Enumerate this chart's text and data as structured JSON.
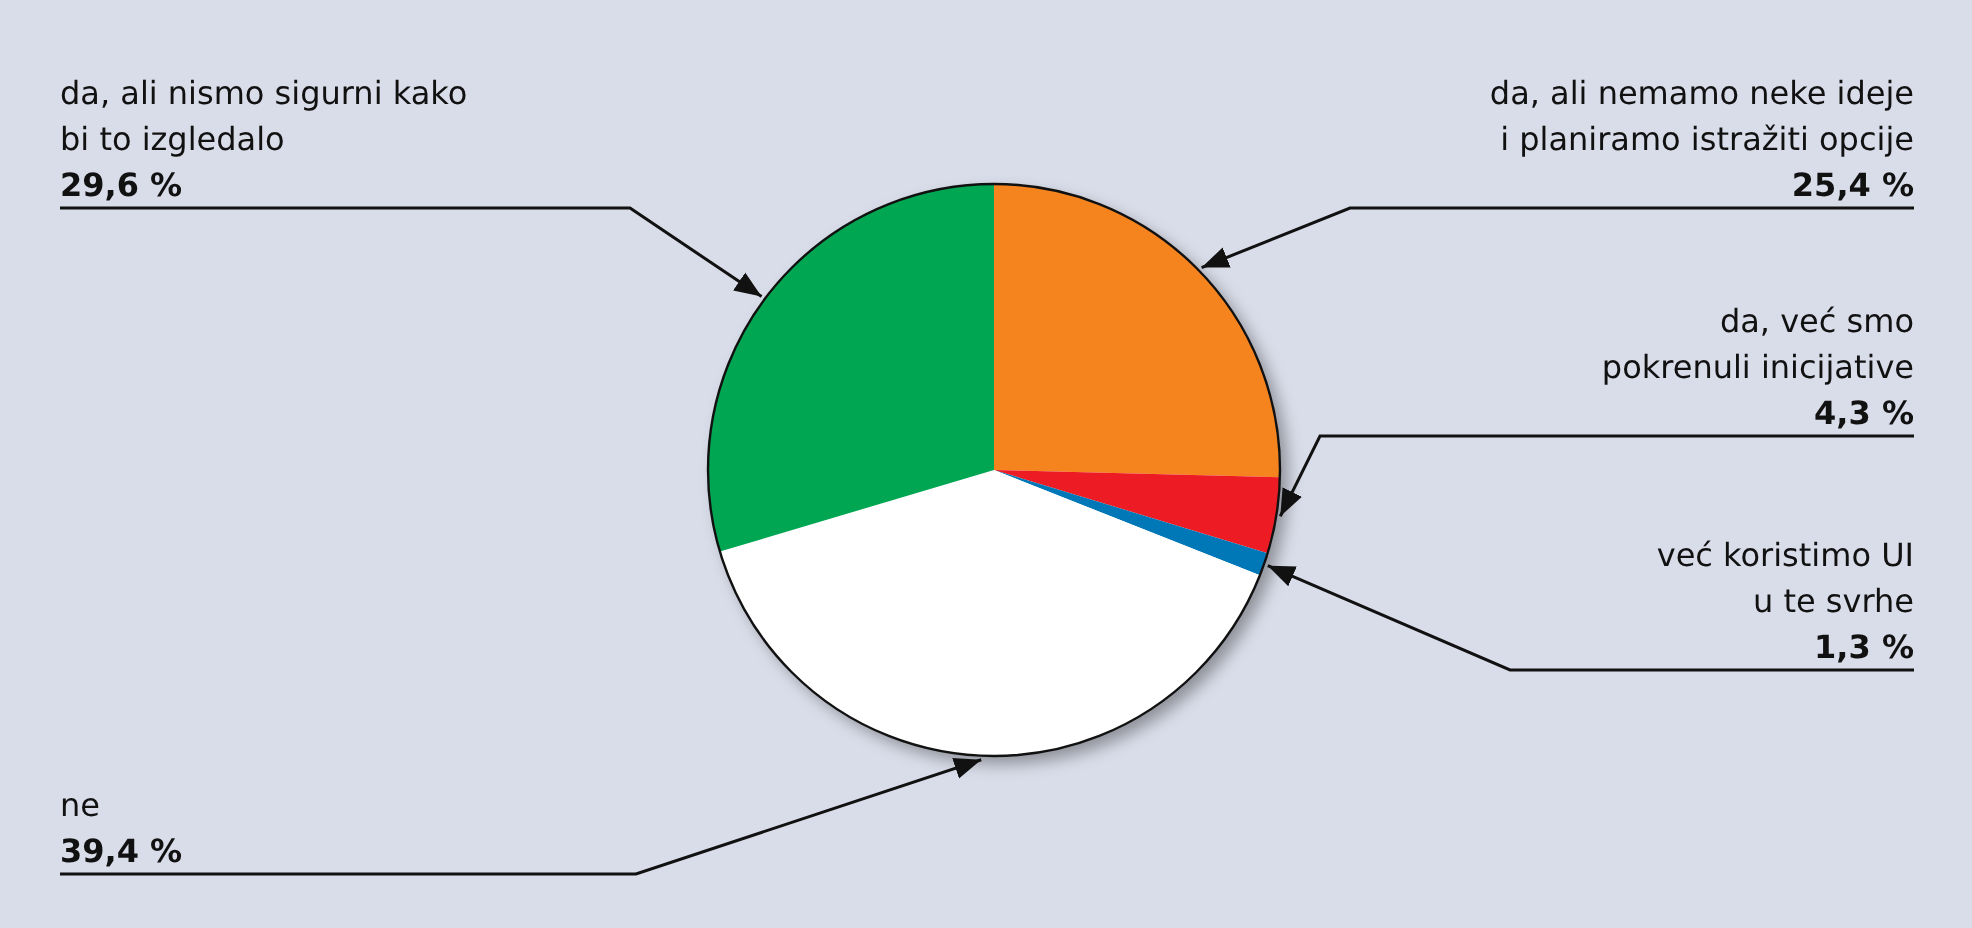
{
  "chart_data": {
    "type": "pie",
    "categories": [
      "da, ali nemamo neke ideje\ni planiramo istražiti opcije",
      "da, već smo\npokrenuli inicijative",
      "već koristimo UI\nu te svrhe",
      "ne",
      "da, ali nismo sigurni kako\nbi to izgledalo"
    ],
    "values": [
      25.4,
      4.3,
      1.3,
      39.4,
      29.6
    ],
    "colors": [
      "#f5841f",
      "#ed1c24",
      "#0077b6",
      "#ffffff",
      "#00a651"
    ],
    "value_labels": [
      "25,4 %",
      "4,3 %",
      "1,3 %",
      "39,4 %",
      "29,6 %"
    ]
  }
}
